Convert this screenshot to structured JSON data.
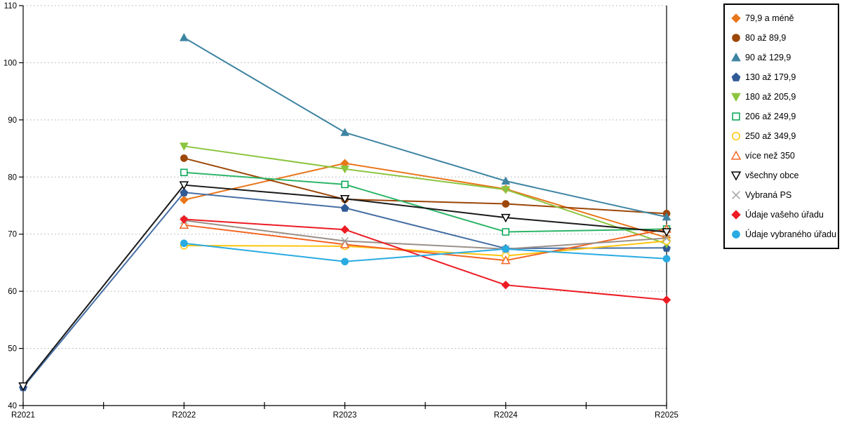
{
  "chart_data": {
    "type": "line",
    "title": "",
    "xlabel": "",
    "ylabel": "",
    "categories": [
      "R2021",
      "R2022",
      "R2023",
      "R2024",
      "R2025"
    ],
    "y_axis": {
      "min": 40,
      "max": 110,
      "step": 10,
      "ticks": [
        40,
        50,
        60,
        70,
        80,
        90,
        100,
        110
      ]
    },
    "grid": "horizontal-dotted",
    "legend_position": "right",
    "gridline_color": "#ABABAB",
    "axis_color": "#000000",
    "series": [
      {
        "name": "79,9 a méně",
        "color": "#E8761B",
        "line_color": "#E8761B",
        "marker": "diamond",
        "fill": "filled",
        "values": [
          null,
          76.0,
          82.4,
          77.9,
          69.4
        ]
      },
      {
        "name": "80 až 89,9",
        "color": "#9C4708",
        "line_color": "#9C4708",
        "marker": "circle",
        "fill": "filled",
        "values": [
          null,
          83.3,
          76.1,
          75.3,
          73.6
        ]
      },
      {
        "name": "90 až 129,9",
        "color": "#3E84A2",
        "line_color": "#3E84A2",
        "marker": "triangle-up",
        "fill": "filled",
        "values": [
          null,
          104.4,
          87.8,
          79.3,
          73.0
        ]
      },
      {
        "name": "130 až 179,9",
        "color": "#305A96",
        "line_color": "#466FA5",
        "marker": "pentagon",
        "fill": "filled",
        "values": [
          43.2,
          77.3,
          74.6,
          67.5,
          67.6
        ]
      },
      {
        "name": "180 až 205,9",
        "color": "#8BC53F",
        "line_color": "#8BC53F",
        "marker": "triangle-down",
        "fill": "filled",
        "values": [
          null,
          85.4,
          81.4,
          77.8,
          68.3
        ]
      },
      {
        "name": "206 až 249,9",
        "color": "#00A652",
        "line_color": "#2DB567",
        "marker": "square",
        "fill": "open",
        "values": [
          null,
          80.8,
          78.7,
          70.4,
          70.9
        ]
      },
      {
        "name": "250 až 349,9",
        "color": "#FFC40C",
        "line_color": "#FFC40C",
        "marker": "circle",
        "fill": "open",
        "values": [
          null,
          68.0,
          67.9,
          66.2,
          68.8
        ]
      },
      {
        "name": "více než 350",
        "color": "#F26522",
        "line_color": "#F26522",
        "marker": "triangle-up",
        "fill": "open",
        "values": [
          null,
          71.6,
          68.2,
          65.4,
          70.9
        ]
      },
      {
        "name": "všechny obce",
        "color": "#000000",
        "line_color": "#1A1A1A",
        "marker": "triangle-down",
        "fill": "open",
        "values": [
          43.4,
          78.6,
          76.2,
          72.9,
          70.4
        ]
      },
      {
        "name": "Vybraná PS",
        "color": "#9E9E9E",
        "line_color": "#9A9088",
        "marker": "x",
        "fill": "open",
        "values": [
          null,
          72.4,
          68.8,
          67.4,
          69.3
        ]
      },
      {
        "name": "Údaje vašeho úřadu",
        "color": "#ED1C24",
        "line_color": "#ED1C24",
        "marker": "diamond",
        "fill": "filled",
        "values": [
          null,
          72.6,
          70.8,
          61.1,
          58.5
        ]
      },
      {
        "name": "Údaje vybraného úřadu",
        "color": "#29ABE2",
        "line_color": "#29ABE2",
        "marker": "circle",
        "fill": "filled",
        "values": [
          null,
          68.4,
          65.2,
          67.4,
          65.7
        ]
      }
    ]
  }
}
